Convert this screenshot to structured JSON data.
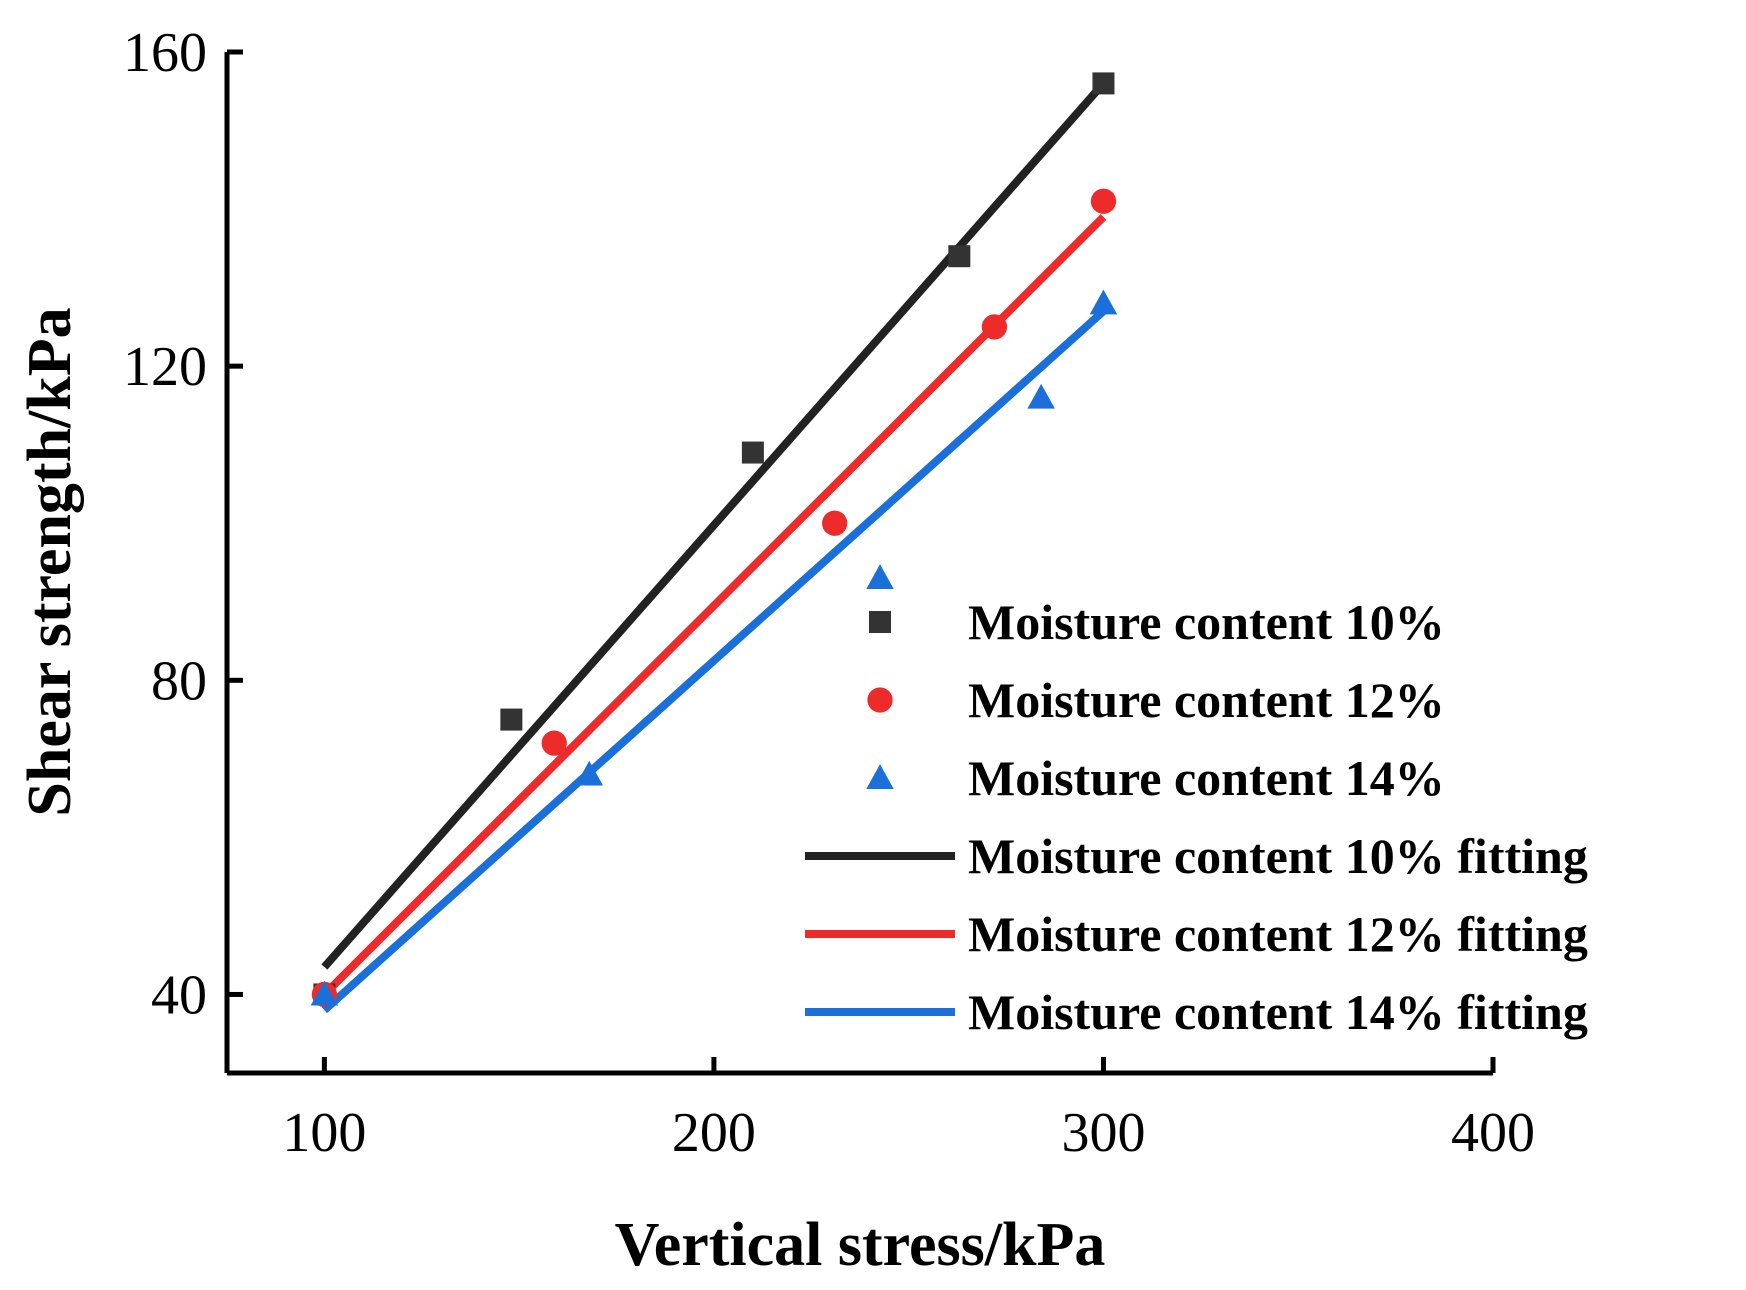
{
  "chart_data": {
    "type": "scatter",
    "xlabel": "Vertical stress/kPa",
    "ylabel": "Shear strength/kPa",
    "xlim": [
      75,
      400
    ],
    "ylim": [
      30,
      160
    ],
    "xticks": [
      "100",
      "200",
      "300",
      "400"
    ],
    "yticks": [
      "40",
      "80",
      "120",
      "160"
    ],
    "xtick_values": [
      100,
      200,
      300,
      400
    ],
    "ytick_values": [
      40,
      80,
      120,
      160
    ],
    "grid": false,
    "legend_position": "lower-right",
    "series": [
      {
        "name": "Moisture content 10%",
        "kind": "scatter",
        "marker": "square",
        "color": "#333333",
        "x": [
          100,
          148,
          210,
          263,
          300
        ],
        "y": [
          40,
          75,
          109,
          134,
          156
        ]
      },
      {
        "name": "Moisture content 12%",
        "kind": "scatter",
        "marker": "circle",
        "color": "#ee2b2b",
        "x": [
          100,
          159,
          231,
          272,
          300
        ],
        "y": [
          40,
          72,
          100,
          125,
          141
        ]
      },
      {
        "name": "Moisture content 14%",
        "kind": "scatter",
        "marker": "triangle",
        "color": "#1a6fd8",
        "x": [
          100,
          168,
          284,
          300
        ],
        "y": [
          40,
          68,
          116,
          128
        ]
      },
      {
        "name": "Moisture content 10% fitting",
        "kind": "line",
        "color": "#222222",
        "x": [
          100,
          300
        ],
        "y": [
          43.5,
          156
        ]
      },
      {
        "name": "Moisture content 12% fitting",
        "kind": "line",
        "color": "#ee2b2b",
        "x": [
          100,
          300
        ],
        "y": [
          40,
          139
        ]
      },
      {
        "name": "Moisture content 14% fitting",
        "kind": "line",
        "color": "#1a6fd8",
        "x": [
          100,
          300
        ],
        "y": [
          38,
          127
        ]
      }
    ]
  }
}
